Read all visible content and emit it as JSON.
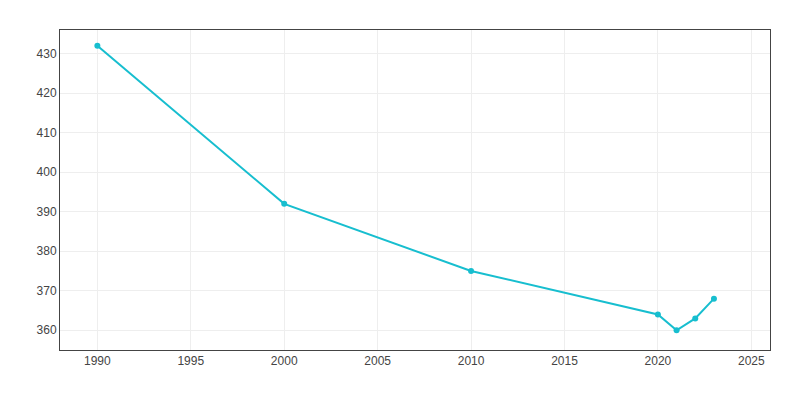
{
  "chart_data": {
    "type": "line",
    "x": [
      1990,
      2000,
      2010,
      2020,
      2021,
      2022,
      2023
    ],
    "values": [
      432,
      392,
      375,
      364,
      360,
      363,
      368
    ],
    "color": "#17becf",
    "marker": "circle",
    "xlim": [
      1988,
      2026
    ],
    "ylim": [
      355,
      436
    ],
    "xticks": [
      1990,
      1995,
      2000,
      2005,
      2010,
      2015,
      2020,
      2025
    ],
    "yticks": [
      360,
      370,
      380,
      390,
      400,
      410,
      420,
      430
    ],
    "grid": true
  }
}
